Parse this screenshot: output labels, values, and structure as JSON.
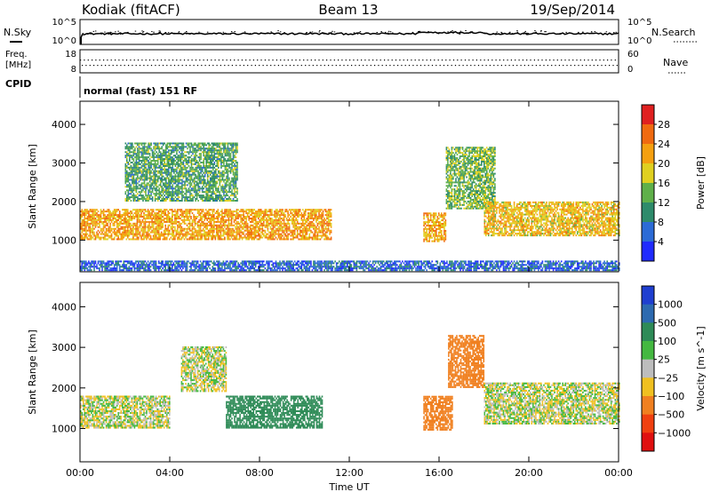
{
  "header": {
    "station": "Kodiak (fitACF)",
    "beam": "Beam 13",
    "date": "19/Sep/2014"
  },
  "strips": {
    "nsky_label": "N.Sky",
    "nsearch_label": "N.Search",
    "noise_ticks": [
      "10^5",
      "10^0"
    ],
    "freq_label_line1": "Freq.",
    "freq_label_line2": "[MHz]",
    "freq_ticks": [
      "18",
      "8"
    ],
    "nave_label": "Nave",
    "nave_ticks": [
      "60",
      "0"
    ],
    "cpid_label": "CPID",
    "cpid_text": "normal (fast) 151 RF"
  },
  "chart_data": [
    {
      "type": "heatmap",
      "panel": "power",
      "xlabel": "Time UT",
      "ylabel": "Slant Range [km]",
      "x_range_hours": [
        0,
        24
      ],
      "ylim": [
        180,
        4600
      ],
      "y_ticks": [
        "1000",
        "2000",
        "3000",
        "4000"
      ],
      "x_tick_labels": [
        "00:00",
        "04:00",
        "08:00",
        "12:00",
        "16:00",
        "20:00",
        "00:00"
      ],
      "colorbar": {
        "label": "Power [dB]",
        "ticks": [
          "4",
          "8",
          "12",
          "16",
          "20",
          "24",
          "28"
        ],
        "colors": [
          "#1f2bff",
          "#2c6bd6",
          "#2e8b6b",
          "#5fb04a",
          "#e0d020",
          "#f5a010",
          "#f06a10",
          "#e02020"
        ]
      },
      "echo_regions": [
        {
          "t_start": 0.0,
          "t_end": 11.2,
          "range_km": [
            1000,
            1800
          ],
          "level_db": 22
        },
        {
          "t_start": 2.0,
          "t_end": 7.0,
          "range_km": [
            2000,
            3500
          ],
          "level_db": 12
        },
        {
          "t_start": 15.3,
          "t_end": 16.3,
          "range_km": [
            950,
            1700
          ],
          "level_db": 22
        },
        {
          "t_start": 16.3,
          "t_end": 18.5,
          "range_km": [
            1800,
            3400
          ],
          "level_db": 14
        },
        {
          "t_start": 18.0,
          "t_end": 24.0,
          "range_km": [
            1100,
            2000
          ],
          "level_db": 20
        },
        {
          "t_start": 0.0,
          "t_end": 24.0,
          "range_km": [
            200,
            450
          ],
          "level_db": 6
        }
      ]
    },
    {
      "type": "heatmap",
      "panel": "velocity",
      "xlabel": "Time UT",
      "ylabel": "Slant Range [km]",
      "x_range_hours": [
        0,
        24
      ],
      "ylim": [
        180,
        4600
      ],
      "y_ticks": [
        "1000",
        "2000",
        "3000",
        "4000"
      ],
      "x_tick_labels": [
        "00:00",
        "04:00",
        "08:00",
        "12:00",
        "16:00",
        "20:00",
        "00:00"
      ],
      "colorbar": {
        "label": "Velocity [m s^-1]",
        "ticks": [
          "1000",
          "500",
          "100",
          "25",
          "−25",
          "−100",
          "−500",
          "−1000"
        ],
        "colors": [
          "#1f3fd0",
          "#2d6ab0",
          "#2e8b57",
          "#44b840",
          "#bdbdbd",
          "#f0c020",
          "#f08020",
          "#f04010",
          "#e01010"
        ]
      },
      "echo_regions": [
        {
          "t_start": 0.0,
          "t_end": 4.0,
          "range_km": [
            1000,
            1800
          ],
          "velocity": 0
        },
        {
          "t_start": 6.5,
          "t_end": 10.8,
          "range_km": [
            1000,
            1800
          ],
          "velocity": 250
        },
        {
          "t_start": 4.5,
          "t_end": 6.5,
          "range_km": [
            1900,
            3000
          ],
          "velocity": 0
        },
        {
          "t_start": 15.3,
          "t_end": 16.6,
          "range_km": [
            950,
            1800
          ],
          "velocity": -300
        },
        {
          "t_start": 16.4,
          "t_end": 18.0,
          "range_km": [
            2000,
            3300
          ],
          "velocity": -200
        },
        {
          "t_start": 18.0,
          "t_end": 24.0,
          "range_km": [
            1100,
            2100
          ],
          "velocity": 0
        }
      ]
    }
  ]
}
